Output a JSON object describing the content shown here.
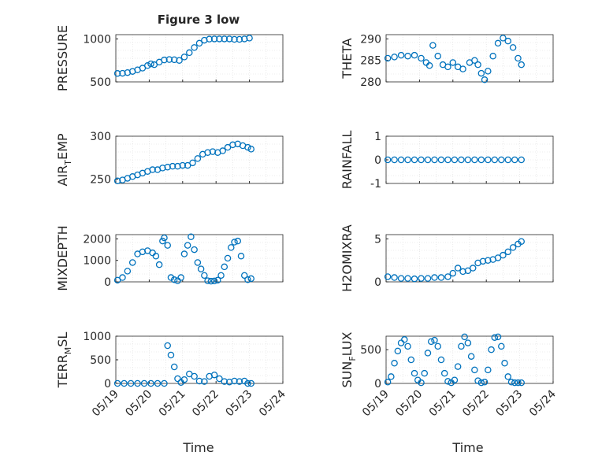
{
  "figure": {
    "title": "Figure 3 low"
  },
  "chart_data": [
    {
      "type": "scatter",
      "ylabel": "PRESSURE",
      "ylim": [
        500,
        1050
      ],
      "yticks": [
        "500",
        "1000"
      ],
      "ytick_values": [
        500,
        1000
      ],
      "xlim": [
        0,
        5
      ],
      "xtick_labels": [
        "05/19",
        "05/20",
        "05/21",
        "05/22",
        "05/23",
        "05/24"
      ],
      "x": [
        0.05,
        0.2,
        0.35,
        0.5,
        0.65,
        0.8,
        0.95,
        1.05,
        1.15,
        1.3,
        1.45,
        1.6,
        1.75,
        1.9,
        2.05,
        2.2,
        2.35,
        2.5,
        2.65,
        2.8,
        2.95,
        3.1,
        3.25,
        3.4,
        3.55,
        3.7,
        3.85,
        4.0
      ],
      "y": [
        598,
        600,
        608,
        622,
        640,
        660,
        690,
        710,
        700,
        730,
        755,
        760,
        758,
        750,
        790,
        840,
        900,
        950,
        985,
        998,
        1000,
        1000,
        1000,
        1000,
        995,
        995,
        1000,
        1010
      ],
      "grid": true
    },
    {
      "type": "scatter",
      "ylabel": "THETA",
      "ylim": [
        280,
        291
      ],
      "yticks": [
        "280",
        "285",
        "290"
      ],
      "ytick_values": [
        280,
        285,
        290
      ],
      "xlim": [
        0,
        5
      ],
      "x": [
        0.05,
        0.25,
        0.45,
        0.65,
        0.85,
        1.05,
        1.2,
        1.3,
        1.4,
        1.55,
        1.7,
        1.85,
        2.0,
        2.15,
        2.3,
        2.5,
        2.65,
        2.75,
        2.85,
        2.95,
        3.05,
        3.2,
        3.35,
        3.5,
        3.65,
        3.8,
        3.95,
        4.05
      ],
      "y": [
        285.5,
        285.8,
        286.2,
        286.0,
        286.2,
        285.5,
        284.5,
        283.8,
        288.5,
        286.0,
        284.0,
        283.5,
        284.5,
        283.5,
        283.0,
        284.5,
        285.0,
        284.0,
        282.0,
        280.5,
        282.5,
        286.0,
        289.0,
        290.2,
        289.5,
        288.0,
        285.5,
        284.0
      ],
      "grid": true
    },
    {
      "type": "scatter",
      "ylabel": "AIR_TEMP",
      "ylim": [
        245,
        300
      ],
      "yticks": [
        "250",
        "300"
      ],
      "ytick_values": [
        250,
        300
      ],
      "xlim": [
        0,
        5
      ],
      "x": [
        0.05,
        0.2,
        0.35,
        0.5,
        0.65,
        0.8,
        0.95,
        1.1,
        1.25,
        1.4,
        1.55,
        1.7,
        1.85,
        2.0,
        2.15,
        2.3,
        2.45,
        2.6,
        2.75,
        2.9,
        3.05,
        3.2,
        3.35,
        3.5,
        3.65,
        3.8,
        3.95,
        4.05
      ],
      "y": [
        248,
        249,
        251,
        253,
        255,
        257,
        259,
        261,
        261,
        263,
        264,
        265,
        265,
        266,
        266,
        269,
        274,
        279,
        281,
        282,
        281,
        283,
        287,
        290,
        291,
        289,
        287,
        285
      ],
      "grid": true
    },
    {
      "type": "scatter",
      "ylabel": "RAINFALL",
      "ylim": [
        -1,
        1
      ],
      "yticks": [
        "-1",
        "0",
        "1"
      ],
      "ytick_values": [
        -1,
        0,
        1
      ],
      "xlim": [
        0,
        5
      ],
      "x": [
        0.05,
        0.25,
        0.45,
        0.65,
        0.85,
        1.05,
        1.25,
        1.45,
        1.65,
        1.85,
        2.05,
        2.25,
        2.45,
        2.65,
        2.85,
        3.05,
        3.25,
        3.45,
        3.65,
        3.85,
        4.05
      ],
      "y": [
        0,
        0,
        0,
        0,
        0,
        0,
        0,
        0,
        0,
        0,
        0,
        0,
        0,
        0,
        0,
        0,
        0,
        0,
        0,
        0,
        0
      ],
      "grid": true
    },
    {
      "type": "scatter",
      "ylabel": "MIXDEPTH",
      "ylim": [
        0,
        2200
      ],
      "yticks": [
        "0",
        "1000",
        "2000"
      ],
      "ytick_values": [
        0,
        1000,
        2000
      ],
      "xlim": [
        0,
        5
      ],
      "x": [
        0.05,
        0.2,
        0.35,
        0.5,
        0.65,
        0.8,
        0.95,
        1.1,
        1.2,
        1.3,
        1.4,
        1.45,
        1.55,
        1.65,
        1.75,
        1.85,
        1.95,
        2.05,
        2.15,
        2.25,
        2.35,
        2.45,
        2.55,
        2.65,
        2.75,
        2.85,
        2.95,
        3.05,
        3.15,
        3.25,
        3.35,
        3.45,
        3.55,
        3.65,
        3.75,
        3.85,
        3.95,
        4.05
      ],
      "y": [
        80,
        200,
        500,
        900,
        1300,
        1400,
        1450,
        1350,
        1200,
        800,
        1900,
        2050,
        1700,
        200,
        100,
        50,
        200,
        1300,
        1700,
        2100,
        1500,
        900,
        600,
        300,
        50,
        30,
        40,
        80,
        300,
        700,
        1100,
        1600,
        1850,
        1900,
        1200,
        300,
        100,
        150
      ],
      "grid": true
    },
    {
      "type": "scatter",
      "ylabel": "H2OMIXRA",
      "ylim": [
        0,
        5.5
      ],
      "yticks": [
        "0",
        "5"
      ],
      "ytick_values": [
        0,
        5
      ],
      "xlim": [
        0,
        5
      ],
      "x": [
        0.05,
        0.25,
        0.45,
        0.65,
        0.85,
        1.05,
        1.25,
        1.45,
        1.65,
        1.85,
        2.0,
        2.15,
        2.3,
        2.45,
        2.6,
        2.75,
        2.9,
        3.05,
        3.2,
        3.35,
        3.5,
        3.65,
        3.8,
        3.95,
        4.05
      ],
      "y": [
        0.6,
        0.5,
        0.4,
        0.4,
        0.35,
        0.4,
        0.4,
        0.5,
        0.5,
        0.6,
        1.0,
        1.6,
        1.2,
        1.3,
        1.6,
        2.2,
        2.4,
        2.5,
        2.6,
        2.8,
        3.1,
        3.5,
        4.0,
        4.4,
        4.7
      ],
      "grid": true
    },
    {
      "type": "scatter",
      "ylabel": "TERR_MSL",
      "ylim": [
        0,
        1000
      ],
      "yticks": [
        "0",
        "500",
        "1000"
      ],
      "ytick_values": [
        0,
        500,
        1000
      ],
      "xlim": [
        0,
        5
      ],
      "x": [
        0.05,
        0.25,
        0.45,
        0.65,
        0.85,
        1.05,
        1.25,
        1.45,
        1.55,
        1.65,
        1.75,
        1.85,
        1.95,
        2.05,
        2.2,
        2.35,
        2.5,
        2.65,
        2.8,
        2.95,
        3.1,
        3.25,
        3.4,
        3.55,
        3.7,
        3.85,
        3.95,
        4.05
      ],
      "y": [
        0,
        0,
        0,
        0,
        0,
        0,
        0,
        0,
        800,
        600,
        350,
        100,
        20,
        80,
        200,
        150,
        50,
        40,
        150,
        180,
        100,
        40,
        30,
        50,
        40,
        50,
        0,
        0
      ],
      "grid": true
    },
    {
      "type": "scatter",
      "ylabel": "SUN_FLUX",
      "ylim": [
        0,
        700
      ],
      "yticks": [
        "0",
        "500"
      ],
      "ytick_values": [
        0,
        500
      ],
      "xlim": [
        0,
        5
      ],
      "x": [
        0.05,
        0.15,
        0.25,
        0.35,
        0.45,
        0.55,
        0.65,
        0.75,
        0.85,
        0.95,
        1.05,
        1.15,
        1.25,
        1.35,
        1.45,
        1.55,
        1.65,
        1.75,
        1.85,
        1.95,
        2.05,
        2.15,
        2.25,
        2.35,
        2.45,
        2.55,
        2.65,
        2.75,
        2.85,
        2.95,
        3.05,
        3.15,
        3.25,
        3.35,
        3.45,
        3.55,
        3.65,
        3.75,
        3.85,
        3.95,
        4.05
      ],
      "y": [
        20,
        100,
        300,
        480,
        600,
        650,
        550,
        350,
        150,
        50,
        10,
        150,
        450,
        620,
        640,
        550,
        350,
        150,
        30,
        10,
        50,
        250,
        550,
        690,
        600,
        400,
        200,
        40,
        10,
        20,
        200,
        500,
        680,
        690,
        550,
        300,
        100,
        20,
        10,
        10,
        10
      ],
      "grid": true
    }
  ],
  "axes_labels": {
    "ylabels": [
      "PRESSURE",
      "THETA",
      "AIR_TEMP",
      "RAINFALL",
      "MIXDEPTH",
      "H2OMIXRA",
      "TERR_MSL",
      "SUN_FLUX"
    ],
    "xlabel_left": "Time",
    "xlabel_right": "Time"
  },
  "style": {
    "marker_color": "#0072BD",
    "axis_color": "#262626",
    "grid_color": "#dcdcdc"
  }
}
